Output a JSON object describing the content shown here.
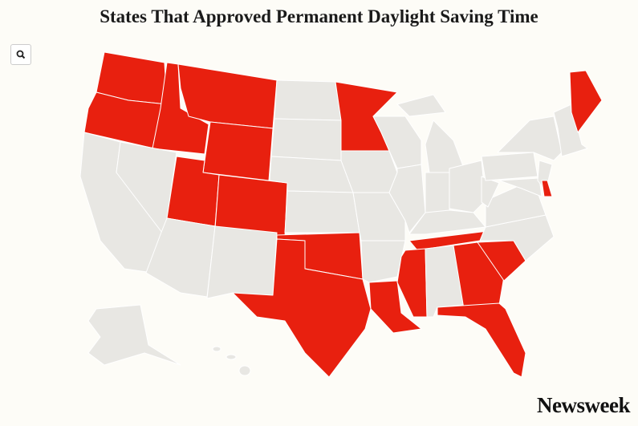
{
  "title": "States That Approved Permanent Daylight Saving Time",
  "logo": "Newsweek",
  "map": {
    "highlight_color": "#e8200f",
    "base_color": "#e8e7e3",
    "border_color": "#ffffff"
  }
}
